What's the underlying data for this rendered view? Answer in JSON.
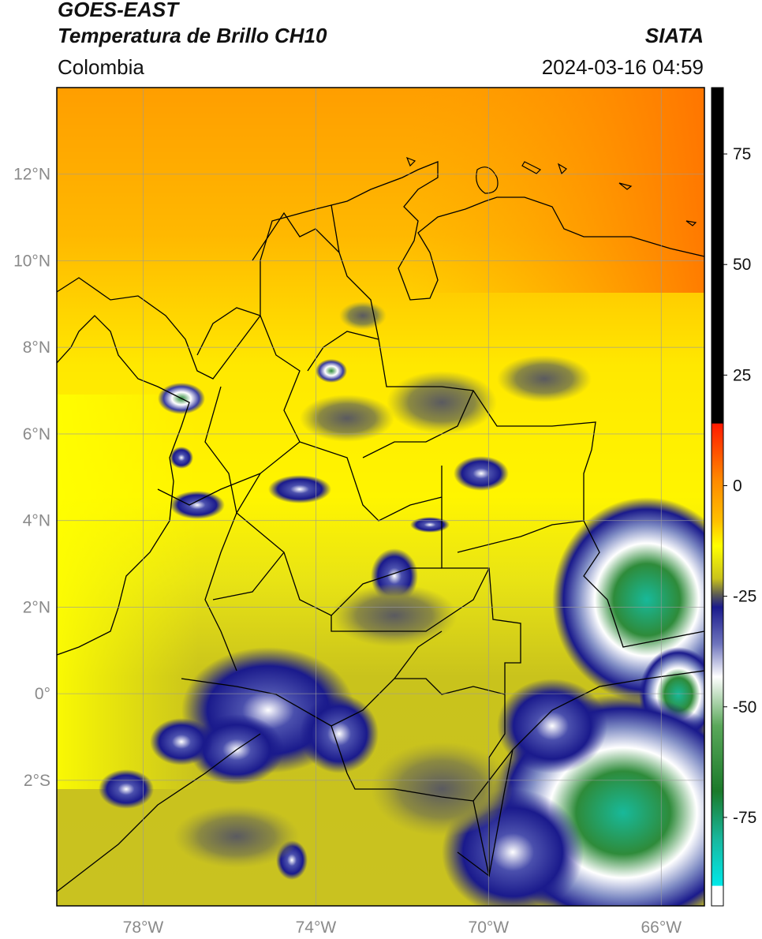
{
  "header": {
    "title_line1": "GOES-EAST",
    "title_line2": "Temperatura de Brillo CH10",
    "region": "Colombia",
    "source": "SIATA",
    "timestamp": "2024-03-16 04:59"
  },
  "map": {
    "lon_range": [
      -80,
      -65
    ],
    "lat_range": [
      -4.9,
      14
    ],
    "gridlines": true,
    "lat_ticks": [
      {
        "value": 12,
        "label": "12°N"
      },
      {
        "value": 10,
        "label": "10°N"
      },
      {
        "value": 8,
        "label": "8°N"
      },
      {
        "value": 6,
        "label": "6°N"
      },
      {
        "value": 4,
        "label": "4°N"
      },
      {
        "value": 2,
        "label": "2°N"
      },
      {
        "value": 0,
        "label": "0°"
      },
      {
        "value": -2,
        "label": "2°S"
      }
    ],
    "lon_ticks": [
      {
        "value": -78,
        "label": "78°W"
      },
      {
        "value": -74,
        "label": "74°W"
      },
      {
        "value": -70,
        "label": "70°W"
      },
      {
        "value": -66,
        "label": "66°W"
      }
    ]
  },
  "colorbar": {
    "range": [
      -95,
      90
    ],
    "ticks": [
      {
        "value": 75,
        "label": "75"
      },
      {
        "value": 50,
        "label": "50"
      },
      {
        "value": 25,
        "label": "25"
      },
      {
        "value": 0,
        "label": "0"
      },
      {
        "value": -25,
        "label": "-25"
      },
      {
        "value": -50,
        "label": "-50"
      },
      {
        "value": -75,
        "label": "-75"
      }
    ],
    "colors": {
      "black": "#000000",
      "red": "#ff1a00",
      "orange": "#ff9a00",
      "yellow": "#ffff00",
      "olive": "#c9c31c",
      "navy": "#1a1a8c",
      "white": "#ffffff",
      "green": "#2e8b3a",
      "cyan": "#00e5e5"
    }
  }
}
